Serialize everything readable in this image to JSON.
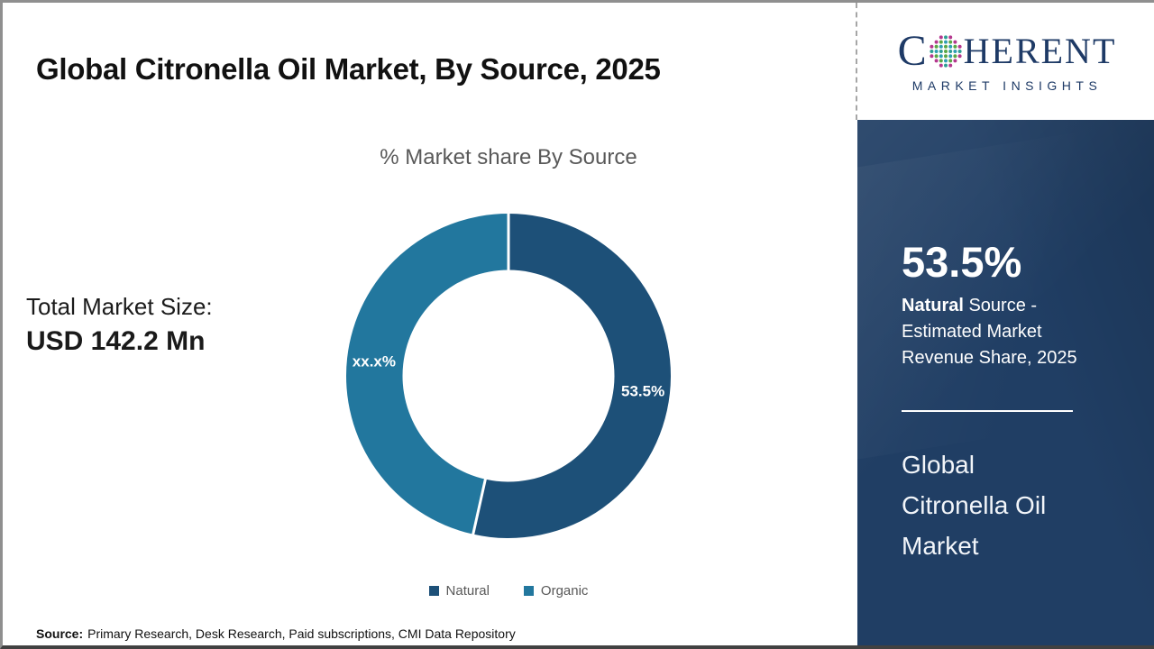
{
  "page": {
    "title": "Global Citronella Oil Market, By Source, 2025",
    "total_market": {
      "label": "Total Market Size:",
      "value": "USD 142.2 Mn"
    },
    "source": {
      "label": "Source:",
      "text": "Primary Research, Desk Research, Paid subscriptions, CMI Data Repository"
    }
  },
  "logo": {
    "brand_c": "C",
    "brand_rest": "HERENT",
    "brand_sub": "MARKET INSIGHTS",
    "brand_color": "#1e3a66"
  },
  "sidebar": {
    "bg_color": "#203e64",
    "stat_value": "53.5%",
    "desc_bold": "Natural",
    "desc_rest": " Source -",
    "desc_line2": "Estimated Market",
    "desc_line3": "Revenue Share, 2025",
    "market_line1": "Global",
    "market_line2": "Citronella Oil",
    "market_line3": "Market"
  },
  "chart_data": {
    "type": "pie",
    "donut": true,
    "title": "% Market share By Source",
    "categories": [
      "Natural",
      "Organic"
    ],
    "values": [
      53.5,
      46.5
    ],
    "slice_labels": [
      "53.5%",
      "xx.x%"
    ],
    "colors": [
      "#1d5078",
      "#22779e"
    ],
    "start_angle_deg": 0,
    "legend_position": "bottom"
  }
}
